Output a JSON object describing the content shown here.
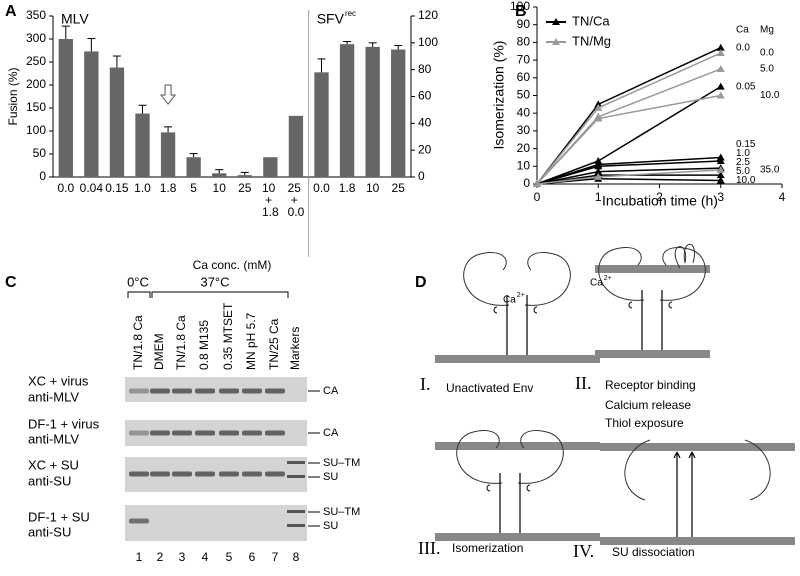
{
  "panel_letters": [
    "A",
    "B",
    "C",
    "D"
  ],
  "chart_data": [
    {
      "type": "bar",
      "ylabel": "Fusion (%)",
      "xlabel": "Ca conc. (mM)",
      "categories": [
        "0.0",
        "0.04",
        "0.15",
        "1.0",
        "1.8",
        "5",
        "10",
        "25",
        "10 + 1.8",
        "25 + 0.0",
        "0.0",
        "1.8",
        "10",
        "25"
      ],
      "group_labels": [
        "MLV",
        "SFV"
      ],
      "group_label_sup": "rec",
      "series": [
        {
          "color": "#666666",
          "values": [
            300,
            273,
            238,
            138,
            97,
            43,
            8,
            4,
            43,
            133,
            null,
            null,
            null,
            null
          ],
          "errors": [
            28,
            28,
            25,
            18,
            12,
            8,
            8,
            6,
            null,
            null,
            null,
            null,
            null,
            null
          ]
        },
        {
          "color": "#666666",
          "axis": "y2",
          "values": [
            null,
            null,
            null,
            null,
            null,
            null,
            null,
            null,
            null,
            null,
            78,
            99,
            97,
            95
          ],
          "errors": [
            null,
            null,
            null,
            null,
            null,
            null,
            null,
            null,
            null,
            null,
            10,
            2,
            3,
            3
          ]
        }
      ],
      "ylim": [
        0,
        350
      ],
      "yticks": [
        0,
        50,
        100,
        150,
        200,
        250,
        300,
        350
      ],
      "y2lim": [
        0,
        120
      ],
      "y2ticks": [
        0,
        20,
        40,
        60,
        80,
        100,
        120
      ]
    },
    {
      "type": "line",
      "ylabel": "Isomerization (%)",
      "xlabel": "Incubation time (h)",
      "x": [
        0,
        1,
        3
      ],
      "xlim": [
        0,
        4
      ],
      "xticks": [
        0,
        1,
        2,
        3,
        4
      ],
      "ylim": [
        0,
        100
      ],
      "yticks": [
        0,
        10,
        20,
        30,
        40,
        50,
        60,
        70,
        80,
        90,
        100
      ],
      "legend": [
        {
          "name": "TN/Ca",
          "color": "#000000"
        },
        {
          "name": "TN/Mg",
          "color": "#999999"
        }
      ],
      "column_headers": [
        "Ca",
        "Mg"
      ],
      "series": [
        {
          "group": 0,
          "label": "0.0",
          "values": [
            0,
            45,
            77
          ]
        },
        {
          "group": 0,
          "label": "0.05",
          "values": [
            0,
            13,
            55
          ]
        },
        {
          "group": 0,
          "label": "0.15",
          "values": [
            0,
            11,
            15
          ]
        },
        {
          "group": 0,
          "label": "1.0",
          "values": [
            0,
            10,
            13
          ]
        },
        {
          "group": 0,
          "label": "2.5",
          "values": [
            0,
            7,
            9
          ]
        },
        {
          "group": 0,
          "label": "5.0",
          "values": [
            0,
            5,
            5
          ]
        },
        {
          "group": 0,
          "label": "10.0",
          "values": [
            0,
            3,
            2
          ]
        },
        {
          "group": 1,
          "label": "0.0",
          "values": [
            0,
            43,
            74
          ]
        },
        {
          "group": 1,
          "label": "5.0",
          "values": [
            0,
            38,
            65
          ]
        },
        {
          "group": 1,
          "label": "10.0",
          "values": [
            0,
            37,
            50
          ]
        },
        {
          "group": 1,
          "label": "35.0",
          "values": [
            0,
            4,
            8
          ]
        }
      ]
    }
  ],
  "gel": {
    "temps": [
      "0°C",
      "37°C"
    ],
    "lanes": [
      "TN/1.8 Ca",
      "DMEM",
      "TN/1.8 Ca",
      "0.8 M135",
      "0.35 MTSET",
      "MN pH 5.7",
      "TN/25 Ca",
      "Markers"
    ],
    "lane_numbers": [
      1,
      2,
      3,
      4,
      5,
      6,
      7,
      8
    ],
    "rows": [
      {
        "label": [
          "XC + virus",
          "anti-MLV"
        ],
        "bands": [
          "CA"
        ]
      },
      {
        "label": [
          "DF-1 + virus",
          "anti-MLV"
        ],
        "bands": [
          "CA"
        ]
      },
      {
        "label": [
          "XC + SU",
          "anti-SU"
        ],
        "bands": [
          "SU–TM",
          "SU"
        ]
      },
      {
        "label": [
          "DF-1 + SU",
          "anti-SU"
        ],
        "bands": [
          "SU–TM",
          "SU"
        ]
      }
    ]
  },
  "diagram": {
    "ion": "Ca",
    "ion_charge": "2+",
    "steps": [
      {
        "numeral": "I.",
        "lines": [
          "Unactivated Env"
        ]
      },
      {
        "numeral": "II.",
        "lines": [
          "Receptor binding",
          "Calcium release",
          "Thiol exposure"
        ]
      },
      {
        "numeral": "III.",
        "lines": [
          "Isomerization"
        ]
      },
      {
        "numeral": "IV.",
        "lines": [
          "SU dissociation"
        ]
      }
    ]
  }
}
